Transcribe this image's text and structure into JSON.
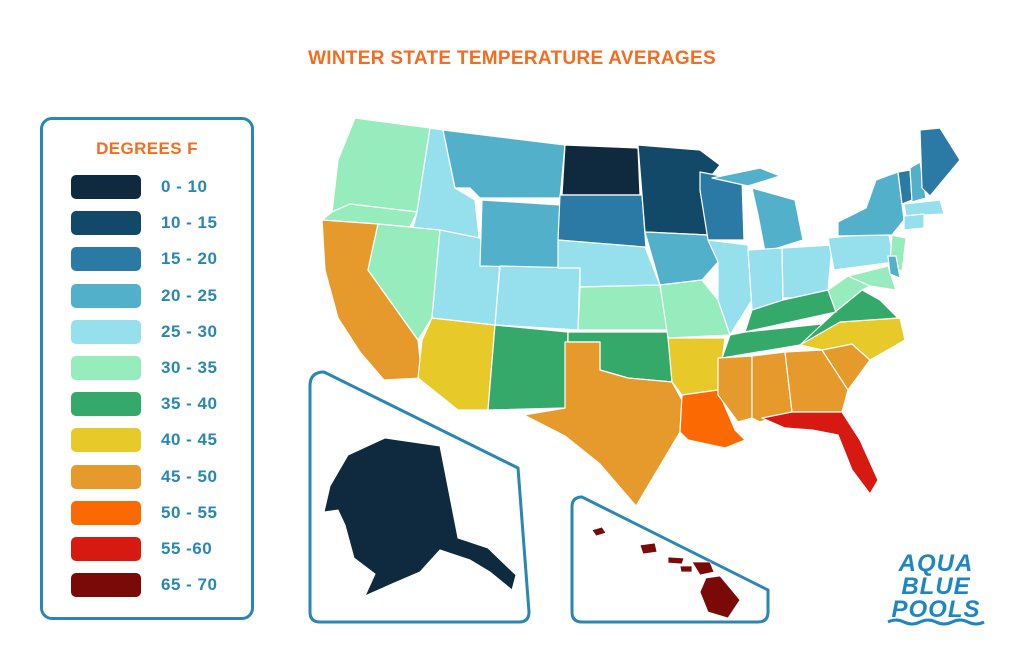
{
  "title": "WINTER STATE TEMPERATURE AVERAGES",
  "legend": {
    "title": "DEGREES F",
    "items": [
      {
        "label": "0 - 10",
        "color": "#0f2a3f"
      },
      {
        "label": "10 - 15",
        "color": "#124968"
      },
      {
        "label": "15 - 20",
        "color": "#2b7aa5"
      },
      {
        "label": "20 - 25",
        "color": "#52b0cb"
      },
      {
        "label": "25 - 30",
        "color": "#96e0ee"
      },
      {
        "label": "30 - 35",
        "color": "#96ecbc"
      },
      {
        "label": "35 - 40",
        "color": "#35a96a"
      },
      {
        "label": "40 - 45",
        "color": "#e7c92a"
      },
      {
        "label": "45 - 50",
        "color": "#e69a2b"
      },
      {
        "label": "50 - 55",
        "color": "#fb6a02"
      },
      {
        "label": "55 -60",
        "color": "#d61a11"
      },
      {
        "label": "65 - 70",
        "color": "#7a0a08"
      }
    ]
  },
  "logo": {
    "line1": "AQUA",
    "line2": "BLUE",
    "line3": "POOLS",
    "color": "#1e87c0"
  },
  "frame_color": "#2a86b2",
  "states": {
    "WA": 5,
    "OR": 5,
    "CA": 8,
    "ID": 4,
    "NV": 5,
    "AZ": 7,
    "UT": 4,
    "MT": 3,
    "WY": 3,
    "CO": 4,
    "NM": 6,
    "ND": 0,
    "SD": 2,
    "NE": 4,
    "KS": 5,
    "OK": 6,
    "TX": 8,
    "MN": 1,
    "IA": 3,
    "MO": 5,
    "AR": 7,
    "LA": 9,
    "WI": 2,
    "IL": 4,
    "MS": 8,
    "MI": 3,
    "IN": 4,
    "OH": 4,
    "KY": 6,
    "TN": 6,
    "AL": 8,
    "GA": 8,
    "FL": 10,
    "SC": 8,
    "NC": 7,
    "VA": 6,
    "WV": 5,
    "PA": 4,
    "NY": 3,
    "VT": 2,
    "NH": 3,
    "ME": 2,
    "MA": 4,
    "CT": 4,
    "NJ": 5,
    "DE": 3,
    "MD": 5,
    "AK": 0,
    "HI": 11
  }
}
